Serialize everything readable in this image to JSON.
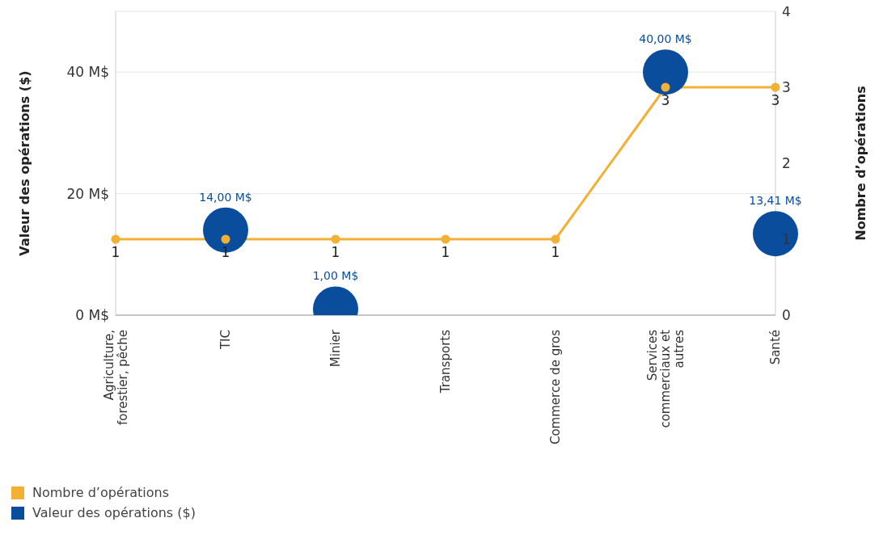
{
  "chart_data": {
    "type": "line",
    "xlabel": null,
    "ylabel": "Valeur des opérations ($)",
    "y2label": "Nombre d’opérations",
    "categories": [
      "Agriculture, forestier, pêche",
      "TIC",
      "Minier",
      "Transports",
      "Commerce de gros",
      "Services commerciaux et autres",
      "Santé"
    ],
    "series": [
      {
        "name": "Nombre d’opérations",
        "axis": "y2",
        "color": "#f2b035",
        "values": [
          1,
          1,
          1,
          1,
          1,
          3,
          3
        ],
        "value_labels": [
          "1",
          "1",
          "1",
          "1",
          "1",
          "3",
          "3"
        ]
      },
      {
        "name": "Valeur des opérations ($)",
        "type": "scatter",
        "color": "#0a4d9c",
        "values": [
          null,
          14,
          1,
          null,
          null,
          40,
          13.41
        ],
        "value_labels": [
          null,
          "14,00 M$",
          "1,00 M$",
          null,
          null,
          "40,00 M$",
          "13,41 M$"
        ]
      }
    ],
    "ylim": [
      0,
      50
    ],
    "yticks": [
      {
        "value": 0,
        "label": "0 M$"
      },
      {
        "value": 20,
        "label": "20 M$"
      },
      {
        "value": 40,
        "label": "40 M$"
      }
    ],
    "y2lim": [
      0,
      4
    ],
    "y2ticks": [
      0,
      1,
      2,
      3,
      4
    ],
    "grid": "y",
    "legend": "bottom left",
    "marker": "circle",
    "line_style": "solid"
  }
}
